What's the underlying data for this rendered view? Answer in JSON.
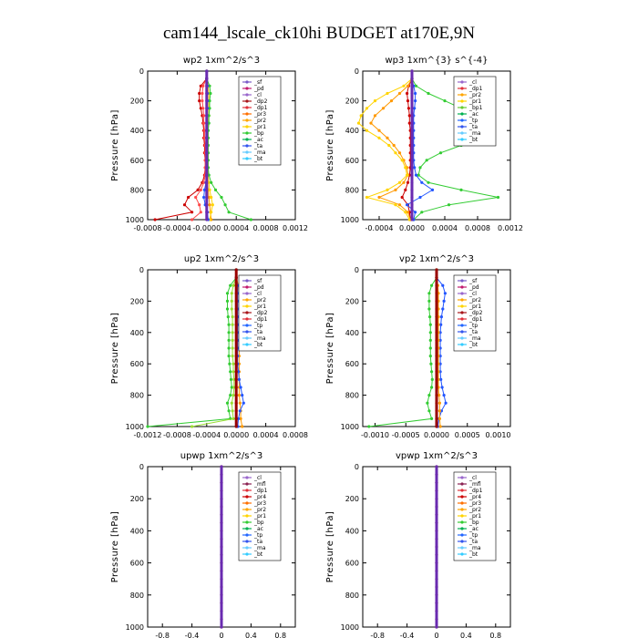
{
  "figure_title": "cam144_lscale_ck10hi  BUDGET at170E,9N",
  "chart_data": [
    {
      "type": "line",
      "title": "wp2   1xm^2/s^3",
      "ylabel": "Pressure [hPa]",
      "ylim": [
        1000,
        0
      ],
      "yticks": [
        0,
        200,
        400,
        600,
        800,
        1000
      ],
      "xlim": [
        -0.0008,
        0.0012
      ],
      "xticks": [
        -0.0008,
        -0.0004,
        0.0,
        0.0004,
        0.0008,
        0.0012
      ],
      "xticklabels": [
        "-0.0008",
        "-0.0004",
        "-0.0000",
        "0.0004",
        "0.0008",
        "0.0012"
      ],
      "pressure": [
        0,
        50,
        100,
        150,
        200,
        250,
        300,
        350,
        400,
        450,
        500,
        550,
        600,
        650,
        700,
        750,
        800,
        850,
        900,
        950,
        1000
      ],
      "legend": [
        "_sf",
        "_pd",
        "_cl",
        "_dp2",
        "_dp1",
        "_pr3",
        "_pr2",
        "_pr1",
        "_bp",
        "_ac",
        "_ta",
        "_ma",
        "_bt"
      ],
      "series": [
        {
          "name": "_dp2",
          "color": "#cc0000",
          "values": [
            0,
            0,
            -8e-05,
            -0.0001,
            -0.0001,
            -8e-05,
            -6e-05,
            -5e-05,
            -4e-05,
            -4e-05,
            -3e-05,
            -3e-05,
            -2e-05,
            -2e-05,
            -3e-05,
            -6e-05,
            -0.00012,
            -0.00025,
            -0.0003,
            -0.0002,
            -0.0007
          ]
        },
        {
          "name": "_dp1",
          "color": "#ff4a4a",
          "values": [
            0,
            0,
            -5e-05,
            -6e-05,
            -6e-05,
            -5e-05,
            -4e-05,
            -4e-05,
            -3e-05,
            -3e-05,
            -2e-05,
            -2e-05,
            -2e-05,
            -2e-05,
            -2e-05,
            -4e-05,
            -8e-05,
            -0.00015,
            -0.0001,
            -8e-05,
            -0.0002
          ]
        },
        {
          "name": "_pr3",
          "color": "#ff9900",
          "values": [
            0,
            0,
            1e-05,
            1e-05,
            1e-05,
            1e-05,
            1e-05,
            1e-05,
            1e-05,
            1e-05,
            1e-05,
            1e-05,
            1e-05,
            1e-05,
            1e-05,
            1e-05,
            2e-05,
            3e-05,
            4e-05,
            5e-05,
            6e-05
          ]
        },
        {
          "name": "_pr2",
          "color": "#ffd400",
          "values": [
            0,
            0,
            2e-05,
            3e-05,
            3e-05,
            3e-05,
            3e-05,
            2e-05,
            2e-05,
            2e-05,
            2e-05,
            2e-05,
            2e-05,
            2e-05,
            2e-05,
            3e-05,
            4e-05,
            6e-05,
            8e-05,
            6e-05,
            4e-05
          ]
        },
        {
          "name": "_bp",
          "color": "#33cc33",
          "values": [
            0,
            0,
            4e-05,
            5e-05,
            4e-05,
            4e-05,
            3e-05,
            3e-05,
            2e-05,
            2e-05,
            2e-05,
            2e-05,
            2e-05,
            2e-05,
            3e-05,
            6e-05,
            0.00012,
            0.0002,
            0.00025,
            0.0003,
            0.0006
          ]
        },
        {
          "name": "_ta",
          "color": "#2255ff",
          "values": [
            0,
            0,
            1e-05,
            1e-05,
            1e-05,
            1e-05,
            0.0,
            0.0,
            0.0,
            0.0,
            0.0,
            0.0,
            0.0,
            0.0,
            0.0,
            -1e-05,
            -3e-05,
            -4e-05,
            -2e-05,
            1e-05,
            2e-05
          ]
        },
        {
          "name": "_bt",
          "color": "#6a2bb0",
          "values": [
            0,
            0,
            0,
            0,
            0,
            0,
            0,
            0,
            0,
            0,
            0,
            0,
            0,
            0,
            0,
            0,
            0,
            0,
            0,
            0,
            0
          ]
        }
      ]
    },
    {
      "type": "line",
      "title": "wp3   1xm^{3} s^{-4}",
      "ylabel": "Pressure [hPa]",
      "ylim": [
        1000,
        0
      ],
      "yticks": [
        0,
        200,
        400,
        600,
        800,
        1000
      ],
      "xlim": [
        -0.0006,
        0.0012
      ],
      "xticks": [
        -0.0004,
        0.0,
        0.0004,
        0.0008,
        0.0012
      ],
      "xticklabels": [
        "-0.0004",
        "0.0000",
        "0.0004",
        "0.0008",
        "0.0012"
      ],
      "pressure": [
        0,
        50,
        100,
        150,
        200,
        250,
        300,
        350,
        400,
        450,
        500,
        550,
        600,
        650,
        700,
        750,
        800,
        850,
        900,
        950,
        1000
      ],
      "legend": [
        "_cl",
        "_dp1",
        "_pr2",
        "_pr1",
        "_bp1",
        "_ac",
        "_tp",
        "_ta",
        "_ma",
        "_bt"
      ],
      "series": [
        {
          "name": "_dp1",
          "color": "#cc0000",
          "values": [
            0,
            0,
            -4e-05,
            -6e-05,
            -5e-05,
            -4e-05,
            -3e-05,
            -3e-05,
            -2e-05,
            -2e-05,
            -2e-05,
            -2e-05,
            -2e-05,
            -2e-05,
            -3e-05,
            -5e-05,
            -8e-05,
            -0.00012,
            -5e-05,
            -3e-05,
            -2e-05
          ]
        },
        {
          "name": "_pr2",
          "color": "#ff9900",
          "values": [
            0,
            0,
            -5e-05,
            -0.00015,
            -0.00025,
            -0.00035,
            -0.00045,
            -0.0005,
            -0.0004,
            -0.0003,
            -0.00022,
            -0.00015,
            -0.0001,
            -6e-05,
            -5e-05,
            -0.0001,
            -0.0002,
            -0.0004,
            -0.00015,
            -5e-05,
            -2e-05
          ]
        },
        {
          "name": "_pr1",
          "color": "#ffd400",
          "values": [
            0,
            0,
            -0.0001,
            -0.0003,
            -0.00045,
            -0.00055,
            -0.00062,
            -0.00065,
            -0.00055,
            -0.0004,
            -0.00028,
            -0.0002,
            -0.00012,
            -8e-05,
            -6e-05,
            -0.00015,
            -0.0003,
            -0.00055,
            -0.0002,
            -8e-05,
            -3e-05
          ]
        },
        {
          "name": "_ac",
          "color": "#33cc33",
          "values": [
            0,
            0,
            5e-05,
            0.0002,
            0.0004,
            0.0006,
            0.0008,
            0.00095,
            0.001,
            0.00085,
            0.0006,
            0.00035,
            0.00018,
            0.0001,
            8e-05,
            0.0002,
            0.0006,
            0.00105,
            0.00045,
            0.00012,
            2e-05
          ]
        },
        {
          "name": "_tp",
          "color": "#2255ff",
          "values": [
            0,
            0,
            2e-05,
            4e-05,
            4e-05,
            3e-05,
            2e-05,
            2e-05,
            2e-05,
            2e-05,
            2e-05,
            2e-05,
            2e-05,
            3e-05,
            5e-05,
            0.00012,
            0.00025,
            0.0001,
            -6e-05,
            4e-05,
            2e-05
          ]
        },
        {
          "name": "_bt",
          "color": "#6a2bb0",
          "values": [
            0,
            0,
            0,
            0,
            0,
            0,
            0,
            0,
            0,
            0,
            0,
            0,
            0,
            0,
            0,
            0,
            0,
            0,
            0,
            0,
            0
          ]
        }
      ]
    },
    {
      "type": "line",
      "title": "up2   1xm^2/s^3",
      "ylabel": "Pressure [hPa]",
      "ylim": [
        1000,
        0
      ],
      "yticks": [
        0,
        200,
        400,
        600,
        800,
        1000
      ],
      "xlim": [
        -0.0012,
        0.0008
      ],
      "xticks": [
        -0.0012,
        -0.0008,
        -0.0004,
        0.0,
        0.0004,
        0.0008
      ],
      "xticklabels": [
        "-0.0012",
        "-0.0008",
        "-0.0004",
        "0.0000",
        "0.0004",
        "0.0008"
      ],
      "pressure": [
        0,
        50,
        100,
        150,
        200,
        250,
        300,
        350,
        400,
        450,
        500,
        550,
        600,
        650,
        700,
        750,
        800,
        850,
        900,
        950,
        1000
      ],
      "legend": [
        "_sf",
        "_pd",
        "_cl",
        "_pr2",
        "_pr1",
        "_dp2",
        "_dp1",
        "_tp",
        "_ta",
        "_ma",
        "_bt"
      ],
      "series": [
        {
          "name": "_dp1",
          "color": "#33cc33",
          "values": [
            0,
            0,
            -8e-05,
            -0.00012,
            -0.00012,
            -0.00012,
            -0.00011,
            -0.0001,
            -0.0001,
            -0.0001,
            -0.0001,
            -0.0001,
            -9e-05,
            -8e-05,
            -7e-05,
            -6e-05,
            -8e-05,
            -0.00012,
            -0.0001,
            -8e-05,
            -0.0012
          ]
        },
        {
          "name": "_dp2",
          "color": "#99dd33",
          "values": [
            0,
            0,
            -4e-05,
            -6e-05,
            -6e-05,
            -6e-05,
            -5e-05,
            -5e-05,
            -5e-05,
            -5e-05,
            -5e-05,
            -5e-05,
            -4e-05,
            -4e-05,
            -3e-05,
            -3e-05,
            -4e-05,
            -6e-05,
            -5e-05,
            -4e-05,
            -0.0006
          ]
        },
        {
          "name": "_pr1",
          "color": "#ff9900",
          "values": [
            0,
            0,
            3e-05,
            4e-05,
            4e-05,
            4e-05,
            4e-05,
            4e-05,
            4e-05,
            4e-05,
            4e-05,
            4e-05,
            4e-05,
            4e-05,
            4e-05,
            4e-05,
            4e-05,
            5e-05,
            6e-05,
            6e-05,
            8e-05
          ]
        },
        {
          "name": "_tp",
          "color": "#2255ff",
          "values": [
            0,
            0,
            2e-05,
            2e-05,
            2e-05,
            2e-05,
            2e-05,
            2e-05,
            2e-05,
            2e-05,
            2e-05,
            2e-05,
            2e-05,
            3e-05,
            4e-05,
            6e-05,
            8e-05,
            0.0001,
            5e-05,
            3e-05,
            2e-05
          ]
        },
        {
          "name": "_bt",
          "color": "#990000",
          "values": [
            0,
            0,
            0,
            0,
            0,
            0,
            0,
            0,
            0,
            0,
            0,
            0,
            0,
            0,
            0,
            0,
            0,
            0,
            0,
            0,
            0
          ]
        }
      ]
    },
    {
      "type": "line",
      "title": "vp2   1xm^2/s^3",
      "ylabel": "Pressure [hPa]",
      "ylim": [
        1000,
        0
      ],
      "yticks": [
        0,
        200,
        400,
        600,
        800,
        1000
      ],
      "xlim": [
        -0.0012,
        0.0012
      ],
      "xticks": [
        -0.001,
        -0.0005,
        0.0,
        0.0005,
        0.001
      ],
      "xticklabels": [
        "-0.0010",
        "-0.0005",
        "0.0000",
        "0.0005",
        "0.0010"
      ],
      "pressure": [
        0,
        50,
        100,
        150,
        200,
        250,
        300,
        350,
        400,
        450,
        500,
        550,
        600,
        650,
        700,
        750,
        800,
        850,
        900,
        950,
        1000
      ],
      "legend": [
        "_sf",
        "_pd",
        "_cl",
        "_pr2",
        "_pr1",
        "_dp2",
        "_dp1",
        "_tp",
        "_ta",
        "_ma",
        "_bt"
      ],
      "series": [
        {
          "name": "_dp1",
          "color": "#33cc33",
          "values": [
            0,
            0,
            -8e-05,
            -0.00012,
            -0.00012,
            -0.00012,
            -0.00011,
            -0.0001,
            -0.0001,
            -0.0001,
            -0.0001,
            -0.0001,
            -9e-05,
            -8e-05,
            -7e-05,
            -8e-05,
            -0.00012,
            -0.00015,
            -0.00012,
            -8e-05,
            -0.0011
          ]
        },
        {
          "name": "_tp",
          "color": "#2255ff",
          "values": [
            0,
            0,
            0.0001,
            0.00014,
            0.00012,
            0.0001,
            8e-05,
            7e-05,
            6e-05,
            6e-05,
            6e-05,
            6e-05,
            6e-05,
            6e-05,
            7e-05,
            9e-05,
            0.00012,
            0.00015,
            8e-05,
            4e-05,
            2e-05
          ]
        },
        {
          "name": "_pr1",
          "color": "#ff9900",
          "values": [
            0,
            0,
            2e-05,
            3e-05,
            3e-05,
            3e-05,
            3e-05,
            3e-05,
            3e-05,
            3e-05,
            3e-05,
            3e-05,
            3e-05,
            3e-05,
            3e-05,
            3e-05,
            4e-05,
            5e-05,
            5e-05,
            5e-05,
            6e-05
          ]
        },
        {
          "name": "_bt",
          "color": "#990000",
          "values": [
            0,
            0,
            0,
            0,
            0,
            0,
            0,
            0,
            0,
            0,
            0,
            0,
            0,
            0,
            0,
            0,
            0,
            0,
            0,
            0,
            0
          ]
        }
      ]
    },
    {
      "type": "line",
      "title": "upwp   1xm^2/s^3",
      "ylabel": "Pressure [hPa]",
      "ylim": [
        1000,
        0
      ],
      "yticks": [
        0,
        200,
        400,
        600,
        800,
        1000
      ],
      "xlim": [
        -1.0,
        1.0
      ],
      "xticks": [
        -0.8,
        -0.4,
        0.0,
        0.4,
        0.8
      ],
      "xticklabels": [
        "-0.8",
        "-0.4",
        "0",
        "0.4",
        "0.8"
      ],
      "pressure": [
        0,
        50,
        100,
        150,
        200,
        250,
        300,
        350,
        400,
        450,
        500,
        550,
        600,
        650,
        700,
        750,
        800,
        850,
        900,
        950,
        1000
      ],
      "legend": [
        "_cl",
        "_mfl",
        "_dp1",
        "_pr4",
        "_pr3",
        "_pr2",
        "_pr1",
        "_bp",
        "_ac",
        "_tp",
        "_ta",
        "_ma",
        "_bt"
      ],
      "series": [
        {
          "name": "_dp1",
          "color": "#990000",
          "values": [
            0,
            0,
            0,
            0,
            0,
            0,
            0,
            0,
            0,
            0,
            0,
            0,
            0,
            0,
            0,
            0,
            0,
            0,
            0,
            0,
            0
          ]
        },
        {
          "name": "_bt",
          "color": "#6a2bb0",
          "values": [
            0,
            0,
            0,
            0,
            0,
            0,
            0,
            0,
            0,
            0,
            0,
            0,
            0,
            0,
            0,
            0,
            0,
            0,
            0,
            0,
            0
          ]
        }
      ]
    },
    {
      "type": "line",
      "title": "vpwp   1xm^2/s^3",
      "ylabel": "Pressure [hPa]",
      "ylim": [
        1000,
        0
      ],
      "yticks": [
        0,
        200,
        400,
        600,
        800,
        1000
      ],
      "xlim": [
        -1.0,
        1.0
      ],
      "xticks": [
        -0.8,
        -0.4,
        0.0,
        0.4,
        0.8
      ],
      "xticklabels": [
        "-0.8",
        "-0.4",
        "0",
        "0.4",
        "0.8"
      ],
      "pressure": [
        0,
        50,
        100,
        150,
        200,
        250,
        300,
        350,
        400,
        450,
        500,
        550,
        600,
        650,
        700,
        750,
        800,
        850,
        900,
        950,
        1000
      ],
      "legend": [
        "_cl",
        "_mfl",
        "_dp1",
        "_pr4",
        "_pr3",
        "_pr2",
        "_pr1",
        "_bp",
        "_ac",
        "_tp",
        "_ta",
        "_ma",
        "_bt"
      ],
      "series": [
        {
          "name": "_dp1",
          "color": "#990000",
          "values": [
            0,
            0,
            0,
            0,
            0,
            0,
            0,
            0,
            0,
            0,
            0,
            0,
            0,
            0,
            0,
            0,
            0,
            0,
            0,
            0,
            0
          ]
        },
        {
          "name": "_bt",
          "color": "#6a2bb0",
          "values": [
            0,
            0,
            0,
            0,
            0,
            0,
            0,
            0,
            0,
            0,
            0,
            0,
            0,
            0,
            0,
            0,
            0,
            0,
            0,
            0,
            0
          ]
        }
      ]
    }
  ],
  "legend_colors": {
    "_sf": "#7a5cc8",
    "_pd": "#c21a6e",
    "_cl": "#9966cc",
    "_mfl": "#8b2252",
    "_dp2": "#a8161b",
    "_dp1": "#e0303a",
    "_pr4": "#cc0000",
    "_pr3": "#ff6f00",
    "_pr2": "#ffa500",
    "_pr1": "#ffd400",
    "_bp": "#33cc33",
    "_bp1": "#66cc33",
    "_ac": "#00b050",
    "_tp": "#2266ff",
    "_ta": "#3355ee",
    "_ma": "#66ccff",
    "_bt": "#33ccff"
  }
}
